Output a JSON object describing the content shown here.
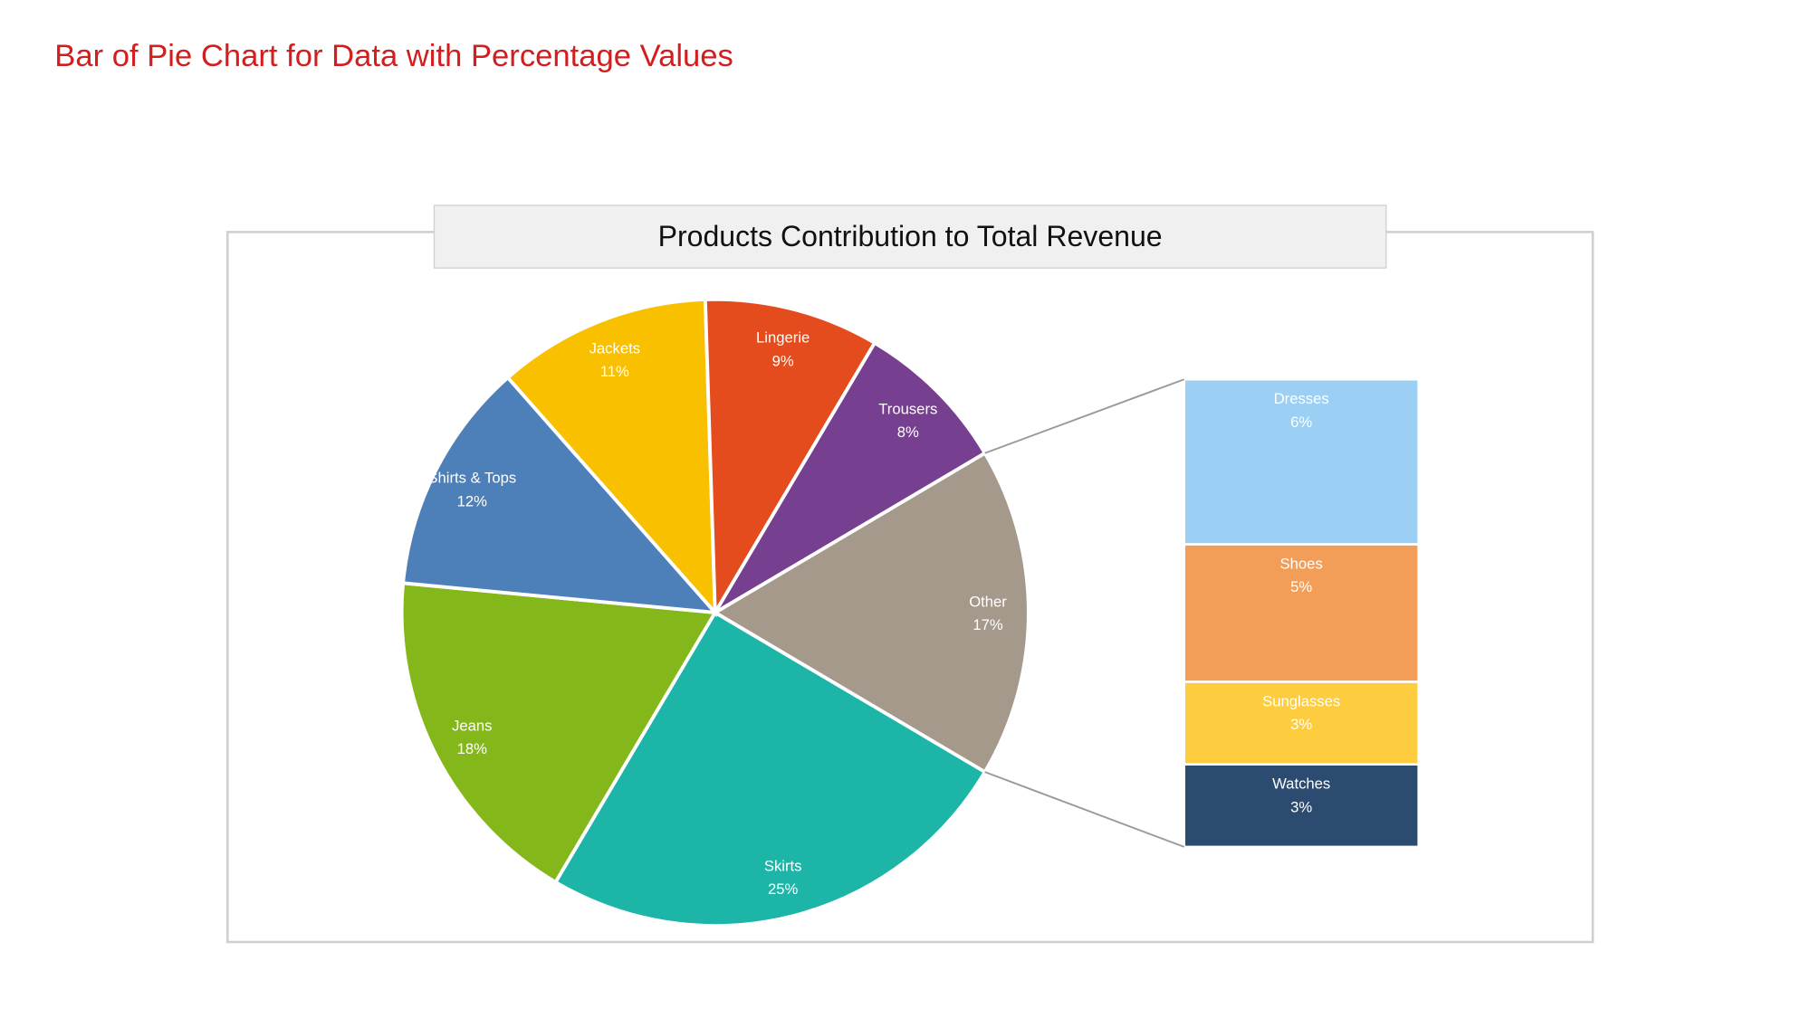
{
  "page_title": "Bar of Pie Chart for Data with Percentage Values",
  "chart_data": {
    "type": "bar-of-pie",
    "title": "Products Contribution to Total Revenue",
    "unit": "%",
    "pie": [
      {
        "label": "Other",
        "value": 17,
        "color": "#A5998C"
      },
      {
        "label": "Skirts",
        "value": 25,
        "color": "#1CB5A8"
      },
      {
        "label": "Jeans",
        "value": 18,
        "color": "#84B81A"
      },
      {
        "label": "Shirts & Tops",
        "value": 12,
        "color": "#4D80B8"
      },
      {
        "label": "Jackets",
        "value": 11,
        "color": "#F9C000"
      },
      {
        "label": "Lingerie",
        "value": 9,
        "color": "#E44B1D"
      },
      {
        "label": "Trousers",
        "value": 8,
        "color": "#773F8F"
      }
    ],
    "bar": [
      {
        "label": "Dresses",
        "value": 6,
        "color": "#9BCFF3"
      },
      {
        "label": "Shoes",
        "value": 5,
        "color": "#F39E58"
      },
      {
        "label": "Sunglasses",
        "value": 3,
        "color": "#FDCC3F"
      },
      {
        "label": "Watches",
        "value": 3,
        "color": "#2B4C70"
      }
    ],
    "legend": "none"
  }
}
